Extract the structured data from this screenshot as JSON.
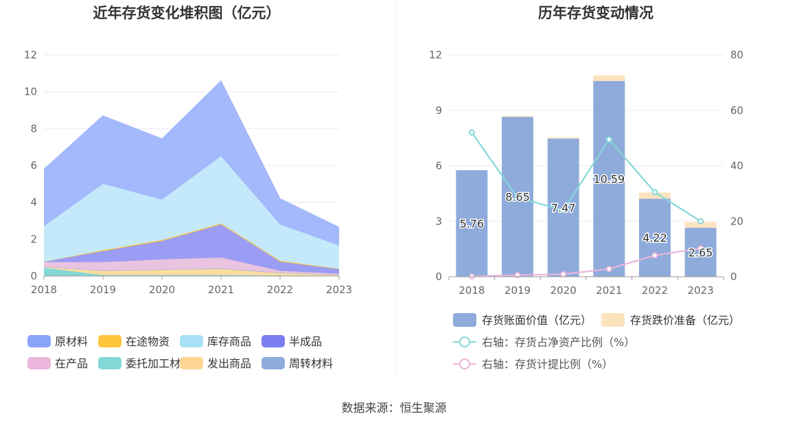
{
  "source": {
    "label": "数据来源：恒生聚源"
  },
  "chart_data": [
    {
      "type": "area",
      "title": "近年存货变化堆积图（亿元）",
      "x": [
        "2018",
        "2019",
        "2020",
        "2021",
        "2022",
        "2023"
      ],
      "ylim": [
        0,
        12
      ],
      "yticks": [
        0,
        2,
        4,
        6,
        8,
        10,
        12
      ],
      "stacked": true,
      "grid": true,
      "legend_position": "bottom",
      "series": [
        {
          "name": "委托加工材料",
          "color": "#84d8d8",
          "values": [
            0.45,
            0.05,
            0.05,
            0.05,
            0.03,
            0.02
          ]
        },
        {
          "name": "发出商品",
          "color": "#fddca0",
          "values": [
            0.05,
            0.25,
            0.3,
            0.35,
            0.15,
            0.05
          ]
        },
        {
          "name": "周转材料",
          "color": "#8eabdb",
          "values": [
            0.0,
            0.0,
            0.0,
            0.0,
            0.0,
            0.0
          ]
        },
        {
          "name": "在产品",
          "color": "#eac3e0",
          "values": [
            0.25,
            0.45,
            0.55,
            0.6,
            0.1,
            0.05
          ]
        },
        {
          "name": "半成品",
          "color": "#9b9cf4",
          "values": [
            0.03,
            0.6,
            1.0,
            1.8,
            0.5,
            0.25
          ]
        },
        {
          "name": "在途物资",
          "color": "#ffc53d",
          "values": [
            0.0,
            0.05,
            0.05,
            0.05,
            0.05,
            0.02
          ]
        },
        {
          "name": "库存商品",
          "color": "#c4e9fb",
          "values": [
            1.92,
            3.6,
            2.2,
            3.65,
            1.97,
            1.26
          ]
        },
        {
          "name": "原材料",
          "color": "#a3b9fc",
          "values": [
            3.1,
            3.7,
            3.3,
            4.1,
            1.4,
            1.0
          ]
        }
      ],
      "legend": [
        {
          "name": "原材料",
          "color": "#8aa4fb"
        },
        {
          "name": "在途物资",
          "color": "#ffc53d"
        },
        {
          "name": "库存商品",
          "color": "#a7e0f7"
        },
        {
          "name": "半成品",
          "color": "#7b7ef0"
        },
        {
          "name": "在产品",
          "color": "#ebb7dc"
        },
        {
          "name": "委托加工材料",
          "color": "#84d8d8"
        },
        {
          "name": "发出商品",
          "color": "#fdd694"
        },
        {
          "name": "周转材料",
          "color": "#8eabdb"
        }
      ]
    },
    {
      "type": "bar",
      "title": "历年存货变动情况",
      "categories": [
        "2018",
        "2019",
        "2020",
        "2021",
        "2022",
        "2023"
      ],
      "ylim": [
        0,
        12
      ],
      "yticks": [
        0,
        3,
        6,
        9,
        12
      ],
      "y2lim": [
        0,
        80
      ],
      "y2ticks": [
        0,
        20,
        40,
        60,
        80
      ],
      "stacked": true,
      "grid": true,
      "legend_position": "bottom",
      "series": [
        {
          "name": "存货账面价值（亿元）",
          "color": "#8eabdb",
          "values": [
            5.76,
            8.65,
            7.47,
            10.59,
            4.22,
            2.65
          ],
          "labels": [
            "5.76",
            "8.65",
            "7.47",
            "10.59",
            "4.22",
            "2.65"
          ]
        },
        {
          "name": "存货跌价准备（亿元）",
          "color": "#fde3bd",
          "values": [
            0.0,
            0.05,
            0.07,
            0.3,
            0.33,
            0.3
          ]
        }
      ],
      "lines": [
        {
          "name": "右轴：存货占净资产比例（%）",
          "color": "#84d8d8",
          "axis": "right",
          "values": [
            52,
            28.5,
            24,
            49.5,
            30.5,
            20
          ]
        },
        {
          "name": "右轴：存货计提比例（%）",
          "color": "#eab5da",
          "axis": "right",
          "values": [
            0.1,
            0.6,
            0.9,
            2.8,
            7.7,
            10.2
          ]
        }
      ]
    }
  ]
}
